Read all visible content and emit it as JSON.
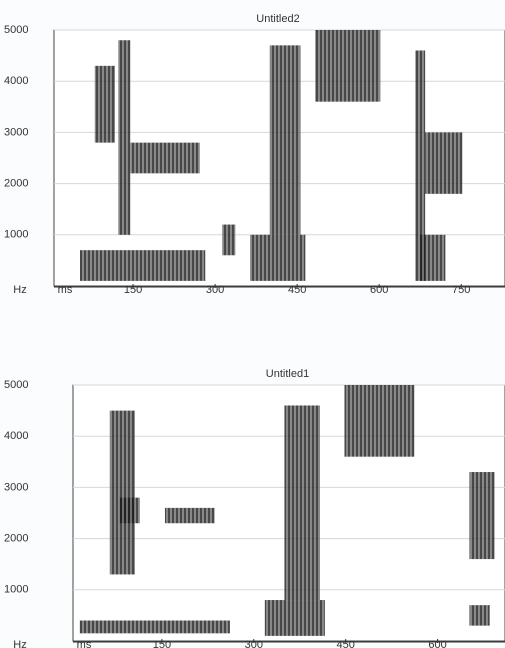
{
  "chart_data": [
    {
      "type": "spectrogram",
      "title": "Untitled2",
      "y_unit": "Hz",
      "x_unit": "ms",
      "xlim": [
        0,
        830
      ],
      "ylim": [
        0,
        5000
      ],
      "xticks": [
        150,
        300,
        450,
        600,
        750
      ],
      "yticks": [
        1000,
        2000,
        3000,
        4000,
        5000
      ],
      "regions": [
        {
          "x": [
            53,
            282
          ],
          "y": [
            100,
            700
          ]
        },
        {
          "x": [
            80,
            117
          ],
          "y": [
            2800,
            4300
          ]
        },
        {
          "x": [
            123,
            145
          ],
          "y": [
            1000,
            4800
          ]
        },
        {
          "x": [
            145,
            272
          ],
          "y": [
            2200,
            2800
          ]
        },
        {
          "x": [
            313,
            337
          ],
          "y": [
            600,
            1200
          ]
        },
        {
          "x": [
            364,
            465
          ],
          "y": [
            100,
            1000
          ]
        },
        {
          "x": [
            400,
            456
          ],
          "y": [
            1000,
            4700
          ]
        },
        {
          "x": [
            483,
            602
          ],
          "y": [
            3600,
            5000
          ]
        },
        {
          "x": [
            666,
            684
          ],
          "y": [
            100,
            4600
          ]
        },
        {
          "x": [
            684,
            752
          ],
          "y": [
            1800,
            3000
          ]
        },
        {
          "x": [
            675,
            721
          ],
          "y": [
            100,
            1000
          ]
        }
      ]
    },
    {
      "type": "spectrogram",
      "title": "Untitled1",
      "y_unit": "Hz",
      "x_unit": "ms",
      "xlim": [
        0,
        710
      ],
      "ylim": [
        0,
        5000
      ],
      "xticks": [
        150,
        300,
        450,
        600
      ],
      "yticks": [
        1000,
        2000,
        3000,
        4000,
        5000
      ],
      "regions": [
        {
          "x": [
            16,
            261
          ],
          "y": [
            150,
            400
          ]
        },
        {
          "x": [
            65,
            106
          ],
          "y": [
            1300,
            4500
          ]
        },
        {
          "x": [
            81,
            114
          ],
          "y": [
            2300,
            2800
          ]
        },
        {
          "x": [
            155,
            236
          ],
          "y": [
            2300,
            2600
          ]
        },
        {
          "x": [
            318,
            416
          ],
          "y": [
            100,
            800
          ]
        },
        {
          "x": [
            350,
            408
          ],
          "y": [
            800,
            4600
          ]
        },
        {
          "x": [
            448,
            562
          ],
          "y": [
            3600,
            5000
          ]
        },
        {
          "x": [
            652,
            693
          ],
          "y": [
            1600,
            3300
          ]
        },
        {
          "x": [
            652,
            685
          ],
          "y": [
            300,
            700
          ]
        }
      ]
    }
  ]
}
